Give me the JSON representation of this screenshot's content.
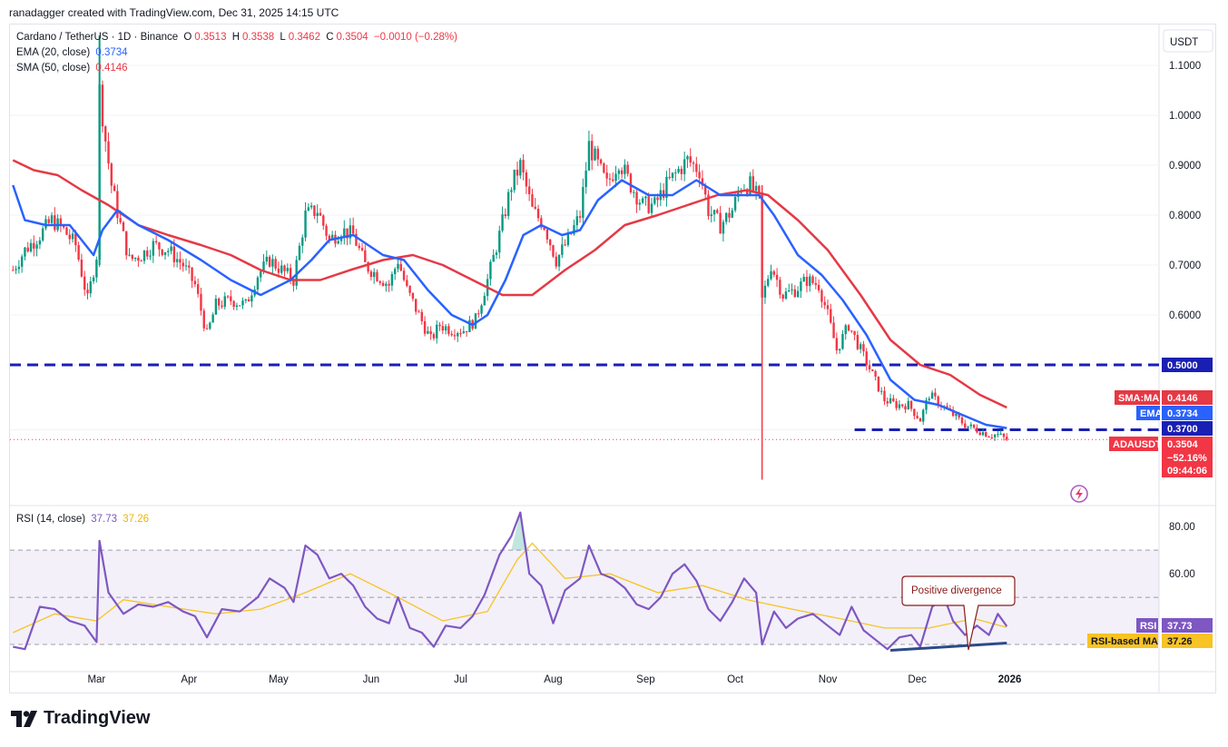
{
  "header": {
    "credit": "ranadagger created with TradingView.com, Dec 31, 2025 14:15 UTC"
  },
  "legend": {
    "symbol": "Cardano / TetherUS · 1D · Binance",
    "o_label": "O",
    "o_value": "0.3513",
    "h_label": "H",
    "h_value": "0.3538",
    "l_label": "L",
    "l_value": "0.3462",
    "c_label": "C",
    "c_value": "0.3504",
    "change": "−0.0010 (−0.28%)",
    "ema_label": "EMA (20, close)",
    "ema_value": "0.3734",
    "sma_label": "SMA (50, close)",
    "sma_value": "0.4146",
    "rsi_label": "RSI (14, close)",
    "rsi_value": "37.73",
    "rsi_ma_value": "37.26"
  },
  "colors": {
    "up": "#089981",
    "down": "#f23645",
    "ema": "#2962ff",
    "sma": "#e53945",
    "rsi": "#7e57c2",
    "rsi_ma": "#f7c325",
    "level": "#1a1fb3",
    "trendline": "#2c4a8a"
  },
  "brand": {
    "name": "TradingView",
    "logo_icon": "tradingview-logo-icon"
  },
  "chart_data": [
    {
      "type": "candlestick",
      "title": "Cardano / TetherUS · 1D · Binance",
      "currency": "USDT",
      "x_ticks": [
        "Mar",
        "Apr",
        "May",
        "Jun",
        "Jul",
        "Aug",
        "Sep",
        "Oct",
        "Nov",
        "Dec",
        "2026"
      ],
      "y_ticks": [
        "1.1000",
        "1.0000",
        "0.9000",
        "0.8000",
        "0.7000",
        "0.6000",
        "0.5000",
        "0.3700"
      ],
      "ylim": [
        0.22,
        1.18
      ],
      "x_range": [
        "2025-01-31",
        "2026-02-20"
      ],
      "close_series": [
        [
          "2025-02-01",
          0.69
        ],
        [
          "2025-02-05",
          0.73
        ],
        [
          "2025-02-10",
          0.76
        ],
        [
          "2025-02-14",
          0.79
        ],
        [
          "2025-02-18",
          0.77
        ],
        [
          "2025-02-22",
          0.74
        ],
        [
          "2025-02-26",
          0.63
        ],
        [
          "2025-03-01",
          0.72
        ],
        [
          "2025-03-02",
          1.05
        ],
        [
          "2025-03-04",
          0.95
        ],
        [
          "2025-03-06",
          0.86
        ],
        [
          "2025-03-09",
          0.78
        ],
        [
          "2025-03-12",
          0.71
        ],
        [
          "2025-03-16",
          0.72
        ],
        [
          "2025-03-20",
          0.74
        ],
        [
          "2025-03-25",
          0.73
        ],
        [
          "2025-03-30",
          0.7
        ],
        [
          "2025-04-03",
          0.66
        ],
        [
          "2025-04-07",
          0.56
        ],
        [
          "2025-04-10",
          0.62
        ],
        [
          "2025-04-15",
          0.63
        ],
        [
          "2025-04-20",
          0.62
        ],
        [
          "2025-04-24",
          0.68
        ],
        [
          "2025-04-28",
          0.71
        ],
        [
          "2025-05-02",
          0.69
        ],
        [
          "2025-05-06",
          0.67
        ],
        [
          "2025-05-10",
          0.8
        ],
        [
          "2025-05-14",
          0.81
        ],
        [
          "2025-05-18",
          0.75
        ],
        [
          "2025-05-22",
          0.77
        ],
        [
          "2025-05-26",
          0.76
        ],
        [
          "2025-05-30",
          0.7
        ],
        [
          "2025-06-03",
          0.68
        ],
        [
          "2025-06-07",
          0.66
        ],
        [
          "2025-06-10",
          0.71
        ],
        [
          "2025-06-13",
          0.65
        ],
        [
          "2025-06-17",
          0.6
        ],
        [
          "2025-06-21",
          0.55
        ],
        [
          "2025-06-24",
          0.58
        ],
        [
          "2025-06-28",
          0.57
        ],
        [
          "2025-07-02",
          0.57
        ],
        [
          "2025-07-06",
          0.59
        ],
        [
          "2025-07-10",
          0.67
        ],
        [
          "2025-07-14",
          0.76
        ],
        [
          "2025-07-18",
          0.86
        ],
        [
          "2025-07-21",
          0.9
        ],
        [
          "2025-07-25",
          0.81
        ],
        [
          "2025-07-29",
          0.78
        ],
        [
          "2025-08-02",
          0.71
        ],
        [
          "2025-08-06",
          0.75
        ],
        [
          "2025-08-10",
          0.8
        ],
        [
          "2025-08-13",
          0.94
        ],
        [
          "2025-08-16",
          0.9
        ],
        [
          "2025-08-19",
          0.86
        ],
        [
          "2025-08-23",
          0.91
        ],
        [
          "2025-08-27",
          0.86
        ],
        [
          "2025-08-31",
          0.82
        ],
        [
          "2025-09-04",
          0.82
        ],
        [
          "2025-09-08",
          0.86
        ],
        [
          "2025-09-12",
          0.89
        ],
        [
          "2025-09-15",
          0.91
        ],
        [
          "2025-09-19",
          0.89
        ],
        [
          "2025-09-22",
          0.81
        ],
        [
          "2025-09-26",
          0.78
        ],
        [
          "2025-09-30",
          0.81
        ],
        [
          "2025-10-03",
          0.86
        ],
        [
          "2025-10-06",
          0.86
        ],
        [
          "2025-10-09",
          0.83
        ],
        [
          "2025-10-10",
          0.63
        ],
        [
          "2025-10-13",
          0.7
        ],
        [
          "2025-10-17",
          0.64
        ],
        [
          "2025-10-21",
          0.65
        ],
        [
          "2025-10-25",
          0.67
        ],
        [
          "2025-10-29",
          0.66
        ],
        [
          "2025-11-01",
          0.6
        ],
        [
          "2025-11-04",
          0.53
        ],
        [
          "2025-11-08",
          0.58
        ],
        [
          "2025-11-12",
          0.53
        ],
        [
          "2025-11-16",
          0.48
        ],
        [
          "2025-11-20",
          0.43
        ],
        [
          "2025-11-24",
          0.42
        ],
        [
          "2025-11-28",
          0.42
        ],
        [
          "2025-12-02",
          0.39
        ],
        [
          "2025-12-05",
          0.44
        ],
        [
          "2025-12-09",
          0.42
        ],
        [
          "2025-12-13",
          0.4
        ],
        [
          "2025-12-17",
          0.38
        ],
        [
          "2025-12-21",
          0.37
        ],
        [
          "2025-12-25",
          0.36
        ],
        [
          "2025-12-28",
          0.36
        ],
        [
          "2025-12-31",
          0.3504
        ]
      ],
      "ema_20": [
        [
          "2025-02-01",
          0.86
        ],
        [
          "2025-02-05",
          0.79
        ],
        [
          "2025-02-12",
          0.78
        ],
        [
          "2025-02-20",
          0.78
        ],
        [
          "2025-02-28",
          0.72
        ],
        [
          "2025-03-03",
          0.77
        ],
        [
          "2025-03-08",
          0.81
        ],
        [
          "2025-03-15",
          0.78
        ],
        [
          "2025-03-25",
          0.75
        ],
        [
          "2025-04-05",
          0.71
        ],
        [
          "2025-04-15",
          0.67
        ],
        [
          "2025-04-25",
          0.64
        ],
        [
          "2025-05-05",
          0.67
        ],
        [
          "2025-05-12",
          0.71
        ],
        [
          "2025-05-18",
          0.75
        ],
        [
          "2025-05-26",
          0.76
        ],
        [
          "2025-06-05",
          0.72
        ],
        [
          "2025-06-12",
          0.71
        ],
        [
          "2025-06-20",
          0.65
        ],
        [
          "2025-06-28",
          0.6
        ],
        [
          "2025-07-05",
          0.58
        ],
        [
          "2025-07-10",
          0.6
        ],
        [
          "2025-07-16",
          0.67
        ],
        [
          "2025-07-22",
          0.76
        ],
        [
          "2025-07-28",
          0.78
        ],
        [
          "2025-08-04",
          0.76
        ],
        [
          "2025-08-10",
          0.77
        ],
        [
          "2025-08-16",
          0.83
        ],
        [
          "2025-08-24",
          0.87
        ],
        [
          "2025-09-02",
          0.84
        ],
        [
          "2025-09-10",
          0.84
        ],
        [
          "2025-09-18",
          0.87
        ],
        [
          "2025-09-26",
          0.84
        ],
        [
          "2025-10-03",
          0.84
        ],
        [
          "2025-10-09",
          0.84
        ],
        [
          "2025-10-14",
          0.8
        ],
        [
          "2025-10-22",
          0.72
        ],
        [
          "2025-10-30",
          0.68
        ],
        [
          "2025-11-06",
          0.63
        ],
        [
          "2025-11-14",
          0.56
        ],
        [
          "2025-11-22",
          0.47
        ],
        [
          "2025-11-30",
          0.43
        ],
        [
          "2025-12-08",
          0.42
        ],
        [
          "2025-12-16",
          0.4
        ],
        [
          "2025-12-24",
          0.38
        ],
        [
          "2025-12-31",
          0.3734
        ]
      ],
      "sma_50": [
        [
          "2025-02-01",
          0.91
        ],
        [
          "2025-02-08",
          0.89
        ],
        [
          "2025-02-16",
          0.88
        ],
        [
          "2025-02-24",
          0.85
        ],
        [
          "2025-03-05",
          0.82
        ],
        [
          "2025-03-15",
          0.78
        ],
        [
          "2025-03-25",
          0.76
        ],
        [
          "2025-04-05",
          0.74
        ],
        [
          "2025-04-15",
          0.72
        ],
        [
          "2025-04-25",
          0.69
        ],
        [
          "2025-05-05",
          0.67
        ],
        [
          "2025-05-15",
          0.67
        ],
        [
          "2025-05-25",
          0.69
        ],
        [
          "2025-06-05",
          0.71
        ],
        [
          "2025-06-15",
          0.72
        ],
        [
          "2025-06-25",
          0.7
        ],
        [
          "2025-07-05",
          0.67
        ],
        [
          "2025-07-15",
          0.64
        ],
        [
          "2025-07-25",
          0.64
        ],
        [
          "2025-08-05",
          0.69
        ],
        [
          "2025-08-15",
          0.73
        ],
        [
          "2025-08-25",
          0.78
        ],
        [
          "2025-09-05",
          0.8
        ],
        [
          "2025-09-15",
          0.82
        ],
        [
          "2025-09-25",
          0.84
        ],
        [
          "2025-10-05",
          0.85
        ],
        [
          "2025-10-12",
          0.84
        ],
        [
          "2025-10-22",
          0.79
        ],
        [
          "2025-11-01",
          0.73
        ],
        [
          "2025-11-12",
          0.64
        ],
        [
          "2025-11-22",
          0.55
        ],
        [
          "2025-12-02",
          0.5
        ],
        [
          "2025-12-12",
          0.48
        ],
        [
          "2025-12-22",
          0.44
        ],
        [
          "2025-12-31",
          0.4146
        ]
      ],
      "levels": [
        {
          "name": "0.5000",
          "value": 0.5,
          "from": "2025-01-31",
          "to": "2026-02-20"
        },
        {
          "name": "0.3700",
          "value": 0.37,
          "from": "2025-11-10",
          "to": "2026-02-20"
        }
      ],
      "last_price_tag": {
        "label": "ADAUSDT",
        "value": "0.3504",
        "change": "−52.16%",
        "countdown": "09:44:06"
      },
      "series_tags": [
        {
          "label": "SMA:MA",
          "value": "0.4146"
        },
        {
          "label": "EMA",
          "value": "0.3734"
        }
      ]
    },
    {
      "type": "line",
      "title": "RSI (14, close)",
      "y_ticks": [
        "80.00",
        "60.00"
      ],
      "ylim": [
        20,
        87
      ],
      "bands": {
        "upper": 70,
        "middle": 50,
        "lower": 30
      },
      "rsi": [
        [
          "2025-02-01",
          29
        ],
        [
          "2025-02-05",
          28
        ],
        [
          "2025-02-10",
          46
        ],
        [
          "2025-02-15",
          45
        ],
        [
          "2025-02-20",
          40
        ],
        [
          "2025-02-25",
          38
        ],
        [
          "2025-03-01",
          31
        ],
        [
          "2025-03-02",
          74
        ],
        [
          "2025-03-05",
          52
        ],
        [
          "2025-03-10",
          43
        ],
        [
          "2025-03-15",
          47
        ],
        [
          "2025-03-20",
          46
        ],
        [
          "2025-03-25",
          48
        ],
        [
          "2025-03-30",
          44
        ],
        [
          "2025-04-03",
          42
        ],
        [
          "2025-04-07",
          33
        ],
        [
          "2025-04-12",
          45
        ],
        [
          "2025-04-18",
          44
        ],
        [
          "2025-04-24",
          50
        ],
        [
          "2025-04-28",
          58
        ],
        [
          "2025-05-03",
          54
        ],
        [
          "2025-05-06",
          48
        ],
        [
          "2025-05-10",
          72
        ],
        [
          "2025-05-14",
          68
        ],
        [
          "2025-05-18",
          58
        ],
        [
          "2025-05-22",
          60
        ],
        [
          "2025-05-26",
          55
        ],
        [
          "2025-05-30",
          46
        ],
        [
          "2025-06-03",
          41
        ],
        [
          "2025-06-07",
          39
        ],
        [
          "2025-06-10",
          50
        ],
        [
          "2025-06-14",
          37
        ],
        [
          "2025-06-18",
          35
        ],
        [
          "2025-06-22",
          29
        ],
        [
          "2025-06-26",
          38
        ],
        [
          "2025-07-01",
          37
        ],
        [
          "2025-07-05",
          42
        ],
        [
          "2025-07-09",
          51
        ],
        [
          "2025-07-14",
          68
        ],
        [
          "2025-07-18",
          76
        ],
        [
          "2025-07-21",
          86
        ],
        [
          "2025-07-24",
          60
        ],
        [
          "2025-07-28",
          55
        ],
        [
          "2025-08-01",
          39
        ],
        [
          "2025-08-05",
          53
        ],
        [
          "2025-08-10",
          58
        ],
        [
          "2025-08-13",
          72
        ],
        [
          "2025-08-17",
          60
        ],
        [
          "2025-08-21",
          58
        ],
        [
          "2025-08-25",
          54
        ],
        [
          "2025-08-29",
          47
        ],
        [
          "2025-09-02",
          45
        ],
        [
          "2025-09-06",
          50
        ],
        [
          "2025-09-10",
          60
        ],
        [
          "2025-09-14",
          64
        ],
        [
          "2025-09-18",
          57
        ],
        [
          "2025-09-22",
          45
        ],
        [
          "2025-09-26",
          40
        ],
        [
          "2025-09-30",
          48
        ],
        [
          "2025-10-04",
          58
        ],
        [
          "2025-10-08",
          52
        ],
        [
          "2025-10-10",
          30
        ],
        [
          "2025-10-14",
          44
        ],
        [
          "2025-10-18",
          37
        ],
        [
          "2025-10-22",
          41
        ],
        [
          "2025-10-27",
          43
        ],
        [
          "2025-11-01",
          38
        ],
        [
          "2025-11-05",
          34
        ],
        [
          "2025-11-09",
          46
        ],
        [
          "2025-11-13",
          36
        ],
        [
          "2025-11-17",
          32
        ],
        [
          "2025-11-21",
          28
        ],
        [
          "2025-11-25",
          33
        ],
        [
          "2025-11-29",
          34
        ],
        [
          "2025-12-02",
          29
        ],
        [
          "2025-12-06",
          46
        ],
        [
          "2025-12-10",
          50
        ],
        [
          "2025-12-13",
          40
        ],
        [
          "2025-12-17",
          34
        ],
        [
          "2025-12-21",
          38
        ],
        [
          "2025-12-25",
          34
        ],
        [
          "2025-12-28",
          43
        ],
        [
          "2025-12-31",
          37.73
        ]
      ],
      "rsi_ma": [
        [
          "2025-02-01",
          35
        ],
        [
          "2025-02-15",
          43
        ],
        [
          "2025-03-01",
          40
        ],
        [
          "2025-03-10",
          49
        ],
        [
          "2025-03-25",
          46
        ],
        [
          "2025-04-10",
          43
        ],
        [
          "2025-04-25",
          45
        ],
        [
          "2025-05-10",
          52
        ],
        [
          "2025-05-25",
          60
        ],
        [
          "2025-06-10",
          50
        ],
        [
          "2025-06-25",
          40
        ],
        [
          "2025-07-10",
          44
        ],
        [
          "2025-07-20",
          66
        ],
        [
          "2025-07-25",
          73
        ],
        [
          "2025-08-05",
          58
        ],
        [
          "2025-08-20",
          60
        ],
        [
          "2025-09-05",
          52
        ],
        [
          "2025-09-20",
          55
        ],
        [
          "2025-10-05",
          49
        ],
        [
          "2025-10-20",
          45
        ],
        [
          "2025-11-05",
          41
        ],
        [
          "2025-11-20",
          37
        ],
        [
          "2025-12-05",
          37
        ],
        [
          "2025-12-20",
          41
        ],
        [
          "2025-12-31",
          37.26
        ]
      ],
      "divergence_trendline": [
        [
          "2025-11-22",
          27.5
        ],
        [
          "2025-12-31",
          30.6
        ]
      ],
      "annotations": [
        {
          "text": "Positive divergence"
        }
      ],
      "series_tags": [
        {
          "label": "RSI",
          "value": "37.73"
        },
        {
          "label": "RSI-based MA",
          "value": "37.26"
        }
      ]
    }
  ]
}
